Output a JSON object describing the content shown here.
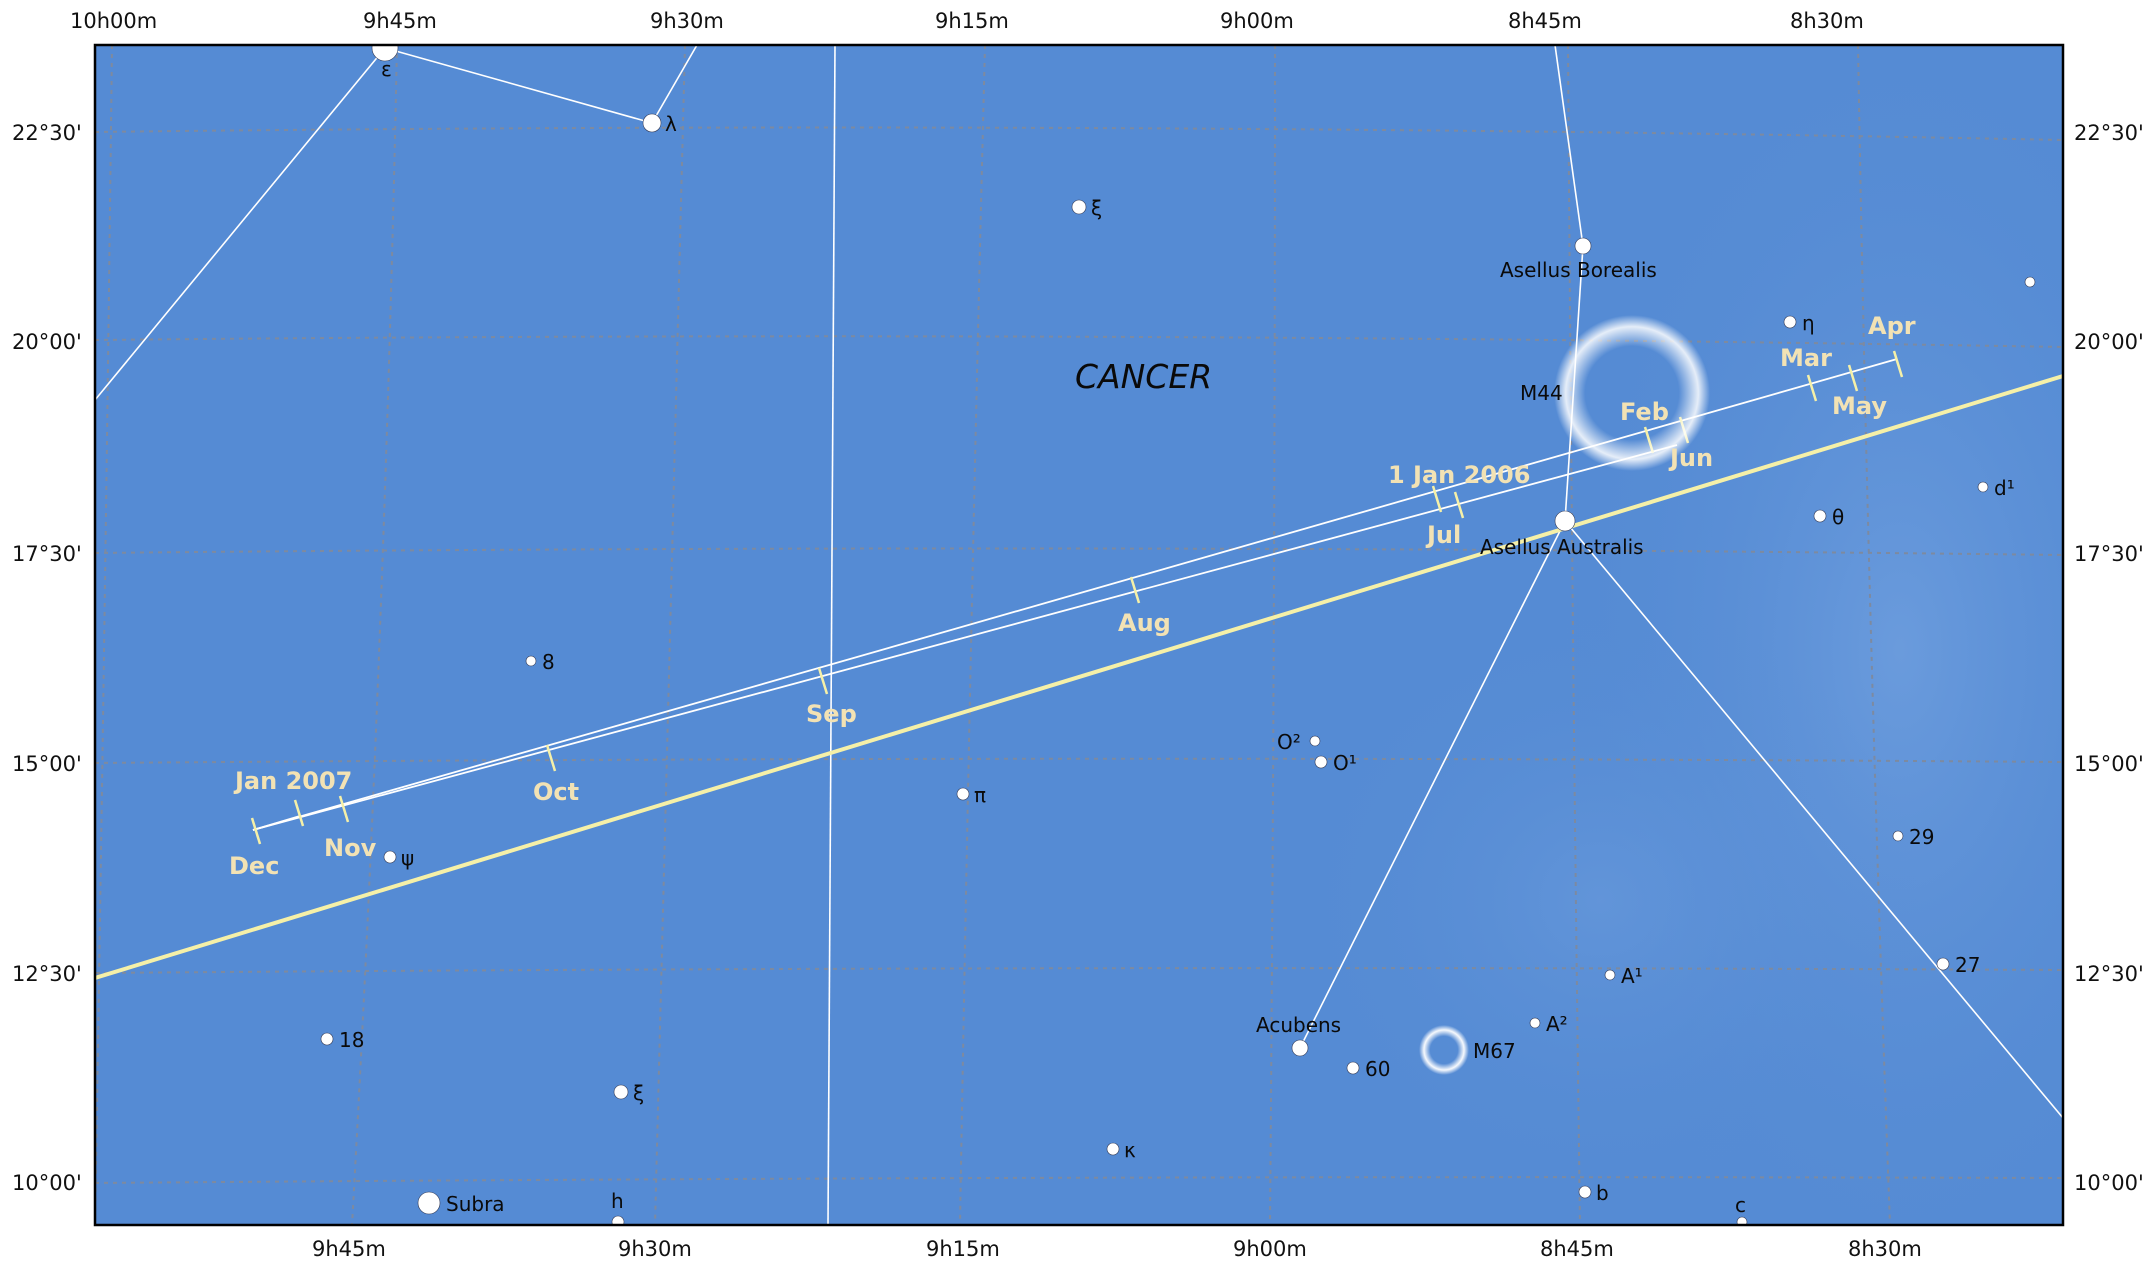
{
  "constellation": {
    "name": "CANCER"
  },
  "scale": {
    "top_ra": [
      "10h00m",
      "9h45m",
      "9h30m",
      "9h15m",
      "9h00m",
      "8h45m",
      "8h30m"
    ],
    "bottom_ra": [
      "9h45m",
      "9h30m",
      "9h15m",
      "9h00m",
      "8h45m",
      "8h30m"
    ],
    "left_dec": [
      "22°30'",
      "20°00'",
      "17°30'",
      "15°00'",
      "12°30'",
      "10°00'"
    ],
    "right_dec": [
      "22°30'",
      "20°00'",
      "17°30'",
      "15°00'",
      "12°30'",
      "10°00'"
    ]
  },
  "stars": [
    {
      "name": "epsilon",
      "label": "ε"
    },
    {
      "name": "lambda",
      "label": "λ"
    },
    {
      "name": "xi-upper",
      "label": "ξ"
    },
    {
      "name": "asellus-borealis",
      "label": "Asellus Borealis"
    },
    {
      "name": "eta",
      "label": "η"
    },
    {
      "name": "d1",
      "label": "d¹"
    },
    {
      "name": "theta",
      "label": "θ"
    },
    {
      "name": "asellus-australis",
      "label": "Asellus Australis"
    },
    {
      "name": "star-8",
      "label": "8"
    },
    {
      "name": "omicron2",
      "label": "O²"
    },
    {
      "name": "omicron1",
      "label": "O¹"
    },
    {
      "name": "pi",
      "label": "π"
    },
    {
      "name": "psi",
      "label": "ψ"
    },
    {
      "name": "star-29",
      "label": "29"
    },
    {
      "name": "star-27",
      "label": "27"
    },
    {
      "name": "a1",
      "label": "A¹"
    },
    {
      "name": "a2",
      "label": "A²"
    },
    {
      "name": "acubens",
      "label": "Acubens"
    },
    {
      "name": "star-60",
      "label": "60"
    },
    {
      "name": "star-18",
      "label": "18"
    },
    {
      "name": "xi-lower",
      "label": "ξ"
    },
    {
      "name": "kappa",
      "label": "κ"
    },
    {
      "name": "subra",
      "label": "Subra"
    },
    {
      "name": "h",
      "label": "h"
    },
    {
      "name": "b",
      "label": "b"
    },
    {
      "name": "c",
      "label": "c"
    },
    {
      "name": "unlabeled-ne",
      "label": ""
    }
  ],
  "clusters": [
    {
      "name": "M44",
      "label": "M44"
    },
    {
      "name": "M67",
      "label": "M67"
    }
  ],
  "track": {
    "start_label": "1 Jan 2006",
    "end_label": "Jan 2007",
    "months_upper": [
      "Apr",
      "Mar",
      "Feb",
      "Aug",
      "Sep",
      "Oct",
      "Nov"
    ],
    "months_lower": [
      "May",
      "Jun",
      "Jul",
      "Dec"
    ]
  },
  "colors": {
    "sky": "#558bd4",
    "grid": "#7d8aa0",
    "ecliptic": "#f5f0a8",
    "track": "#ffffff",
    "month_label": "#f2e2b4"
  }
}
